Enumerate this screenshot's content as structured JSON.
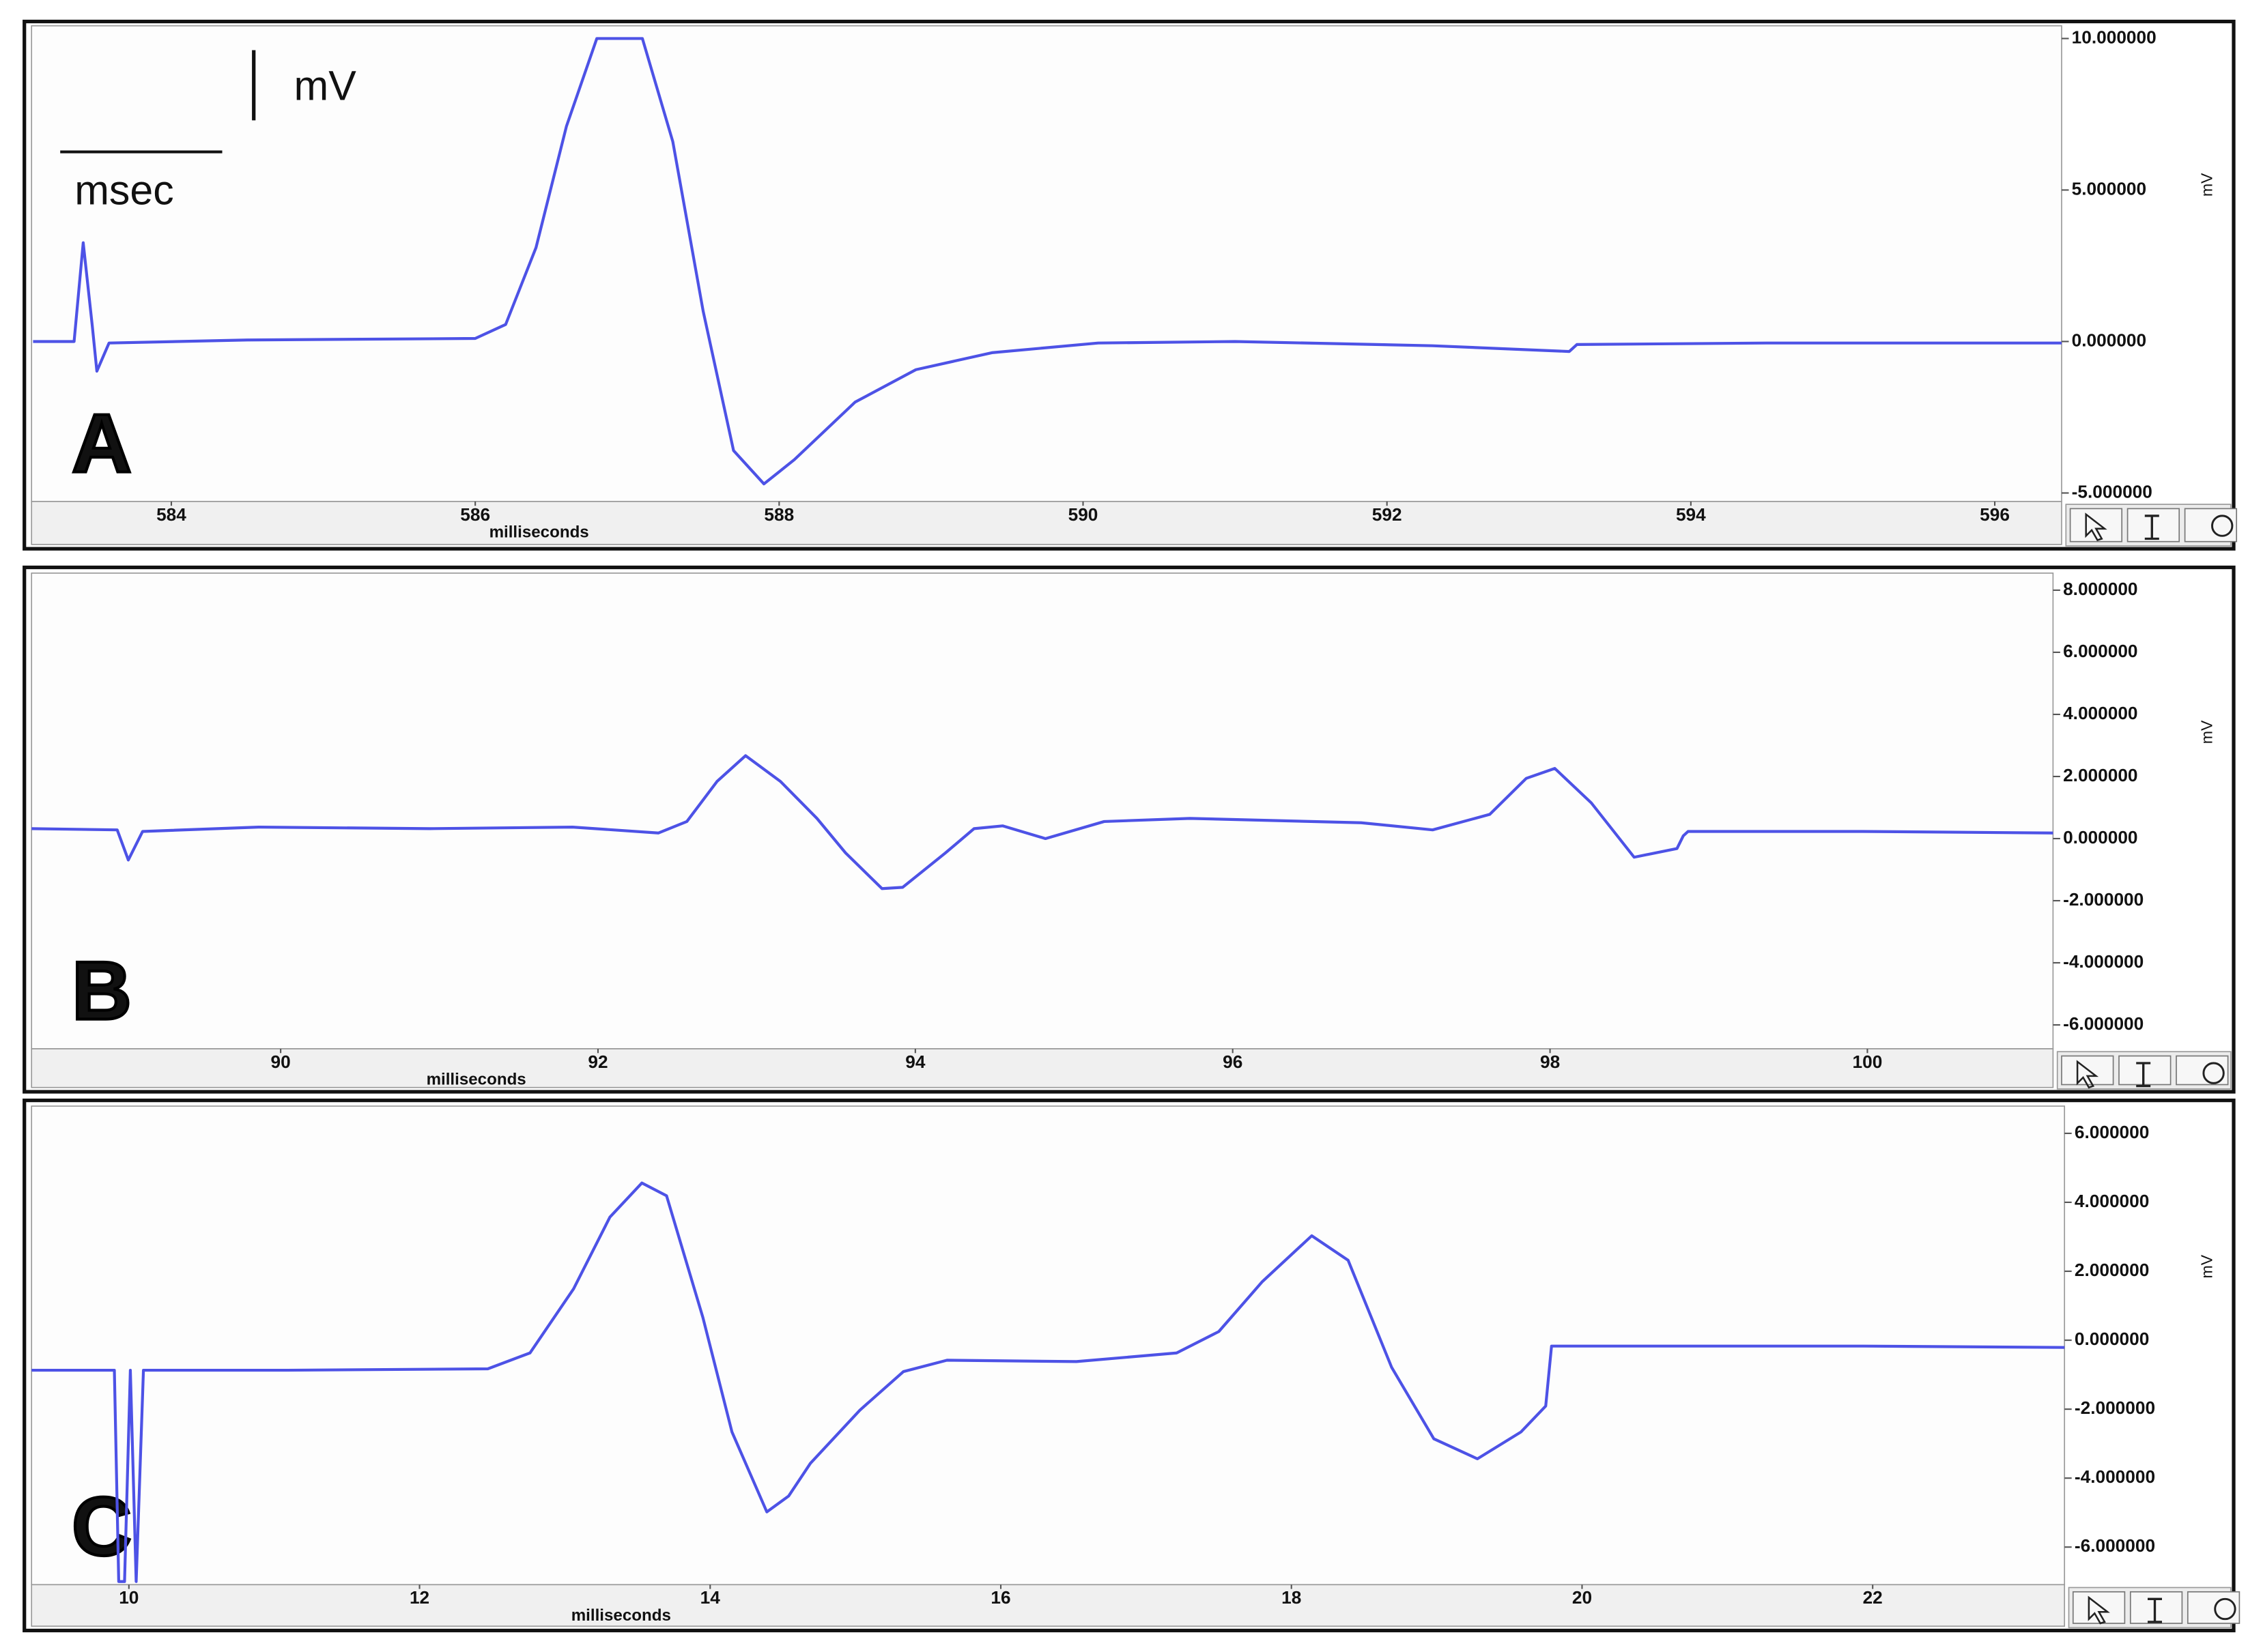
{
  "chart_data": [
    {
      "type": "line",
      "label": "A",
      "xlabel": "milliseconds",
      "ylabel": "mV",
      "annotations": [
        "mV",
        "msec"
      ],
      "xlim": [
        583.08,
        596.44
      ],
      "xticks": [
        584,
        586,
        588,
        590,
        592,
        594,
        596
      ],
      "ylim": [
        -5.28,
        10.42
      ],
      "yticks": [
        {
          "value": 10,
          "label": "10.000000"
        },
        {
          "value": 5,
          "label": "5.000000"
        },
        {
          "value": 0,
          "label": "0.000000"
        },
        {
          "value": -5,
          "label": "-5.000000"
        }
      ],
      "series": [
        {
          "color": "#4d52e6",
          "x": [
            583.09,
            583.36,
            583.42,
            583.48,
            583.51,
            583.59,
            584.5,
            586.0,
            586.2,
            586.4,
            586.6,
            586.8,
            587.1,
            587.3,
            587.5,
            587.7,
            587.9,
            588.1,
            588.5,
            588.9,
            589.4,
            590.1,
            591.0,
            592.3,
            593.2,
            593.25,
            594.5,
            596.44
          ],
          "values": [
            0.0,
            0.0,
            3.26,
            0.5,
            -0.98,
            -0.05,
            0.05,
            0.1,
            0.56,
            3.1,
            7.1,
            10.0,
            10.0,
            6.6,
            1.0,
            -3.6,
            -4.7,
            -3.9,
            -2.0,
            -0.93,
            -0.37,
            -0.05,
            0.0,
            -0.14,
            -0.33,
            -0.1,
            -0.05,
            -0.05
          ]
        }
      ]
    },
    {
      "type": "line",
      "label": "B",
      "xlabel": "milliseconds",
      "ylabel": "mV",
      "xlim": [
        88.43,
        101.17
      ],
      "xticks": [
        90,
        92,
        94,
        96,
        98,
        100
      ],
      "ylim": [
        -6.77,
        8.55
      ],
      "yticks": [
        {
          "value": 8,
          "label": "8.000000"
        },
        {
          "value": 6,
          "label": "6.000000"
        },
        {
          "value": 4,
          "label": "4.000000"
        },
        {
          "value": 2,
          "label": "2.000000"
        },
        {
          "value": 0,
          "label": "0.000000"
        },
        {
          "value": -2,
          "label": "-2.000000"
        },
        {
          "value": -4,
          "label": "-4.000000"
        },
        {
          "value": -6,
          "label": "-6.000000"
        }
      ],
      "series": [
        {
          "color": "#4d52e6",
          "x": [
            88.43,
            88.97,
            89.04,
            89.13,
            89.86,
            90.94,
            91.84,
            92.38,
            92.56,
            92.75,
            92.93,
            93.15,
            93.38,
            93.56,
            93.79,
            93.92,
            94.19,
            94.37,
            94.55,
            94.82,
            95.19,
            95.73,
            96.81,
            97.26,
            97.62,
            97.85,
            98.03,
            98.26,
            98.53,
            98.8,
            98.84,
            98.87,
            99.97,
            101.17
          ],
          "values": [
            0.32,
            0.28,
            -0.69,
            0.23,
            0.37,
            0.32,
            0.37,
            0.18,
            0.55,
            1.84,
            2.67,
            1.84,
            0.65,
            -0.46,
            -1.61,
            -1.57,
            -0.46,
            0.32,
            0.41,
            0.0,
            0.55,
            0.65,
            0.51,
            0.28,
            0.78,
            1.94,
            2.26,
            1.15,
            -0.6,
            -0.32,
            0.09,
            0.23,
            0.23,
            0.18
          ]
        }
      ]
    },
    {
      "type": "line",
      "label": "C",
      "xlabel": "milliseconds",
      "ylabel": "mV",
      "xlim": [
        9.33,
        23.32
      ],
      "xticks": [
        10,
        12,
        14,
        16,
        18,
        20,
        22
      ],
      "ylim": [
        -7.09,
        6.79
      ],
      "yticks": [
        {
          "value": 6,
          "label": "6.000000"
        },
        {
          "value": 4,
          "label": "4.000000"
        },
        {
          "value": 2,
          "label": "2.000000"
        },
        {
          "value": 0,
          "label": "0.000000"
        },
        {
          "value": -2,
          "label": "-2.000000"
        },
        {
          "value": -4,
          "label": "-4.000000"
        },
        {
          "value": -6,
          "label": "-6.000000"
        }
      ],
      "series": [
        {
          "color": "#4d52e6",
          "x": [
            9.33,
            9.9,
            9.93,
            9.97,
            10.01,
            10.05,
            10.1,
            11.09,
            12.47,
            12.76,
            13.06,
            13.31,
            13.53,
            13.7,
            13.95,
            14.15,
            14.39,
            14.54,
            14.69,
            15.03,
            15.33,
            15.63,
            16.52,
            17.21,
            17.5,
            17.8,
            18.14,
            18.39,
            18.69,
            18.98,
            19.28,
            19.58,
            19.75,
            19.79,
            19.97,
            21.94,
            23.32
          ],
          "values": [
            -0.87,
            -0.87,
            -7.0,
            -7.0,
            -0.87,
            -7.0,
            -0.87,
            -0.87,
            -0.83,
            -0.37,
            1.49,
            3.57,
            4.56,
            4.19,
            0.66,
            -2.66,
            -4.98,
            -4.52,
            -3.57,
            -2.03,
            -0.91,
            -0.58,
            -0.62,
            -0.37,
            0.25,
            1.7,
            3.03,
            2.32,
            -0.79,
            -2.86,
            -3.44,
            -2.66,
            -1.91,
            -0.17,
            -0.17,
            -0.17,
            -0.21
          ]
        }
      ]
    }
  ]
}
